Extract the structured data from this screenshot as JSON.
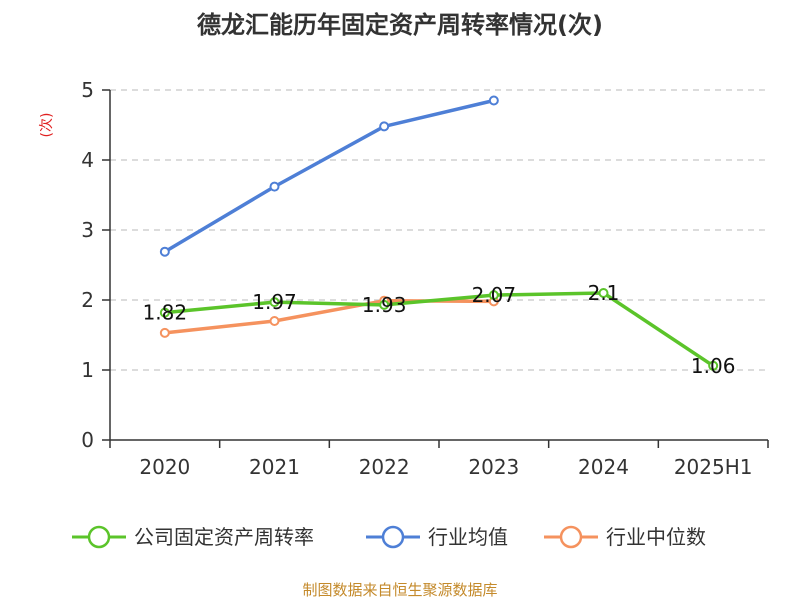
{
  "chart_data": {
    "type": "line",
    "title": "德龙汇能历年固定资产周转率情况(次)",
    "ylabel": "(次)",
    "xlabel": "",
    "categories": [
      "2020",
      "2021",
      "2022",
      "2023",
      "2024",
      "2025H1"
    ],
    "ylim": [
      0,
      5
    ],
    "yticks": [
      0,
      1,
      2,
      3,
      4,
      5
    ],
    "grid": true,
    "legend_position": "bottom",
    "series": [
      {
        "name": "公司固定资产周转率",
        "values": [
          1.82,
          1.97,
          1.93,
          2.07,
          2.1,
          1.06
        ],
        "color": "#5bc42a",
        "labels": [
          "1.82",
          "1.97",
          "1.93",
          "2.07",
          "2.1",
          "1.06"
        ]
      },
      {
        "name": "行业均值",
        "values": [
          2.69,
          3.62,
          4.48,
          4.85,
          null,
          null
        ],
        "color": "#4e7fd6"
      },
      {
        "name": "行业中位数",
        "values": [
          1.53,
          1.7,
          1.99,
          1.98,
          null,
          null
        ],
        "color": "#f5925e"
      }
    ],
    "source": "制图数据来自恒生聚源数据库"
  }
}
